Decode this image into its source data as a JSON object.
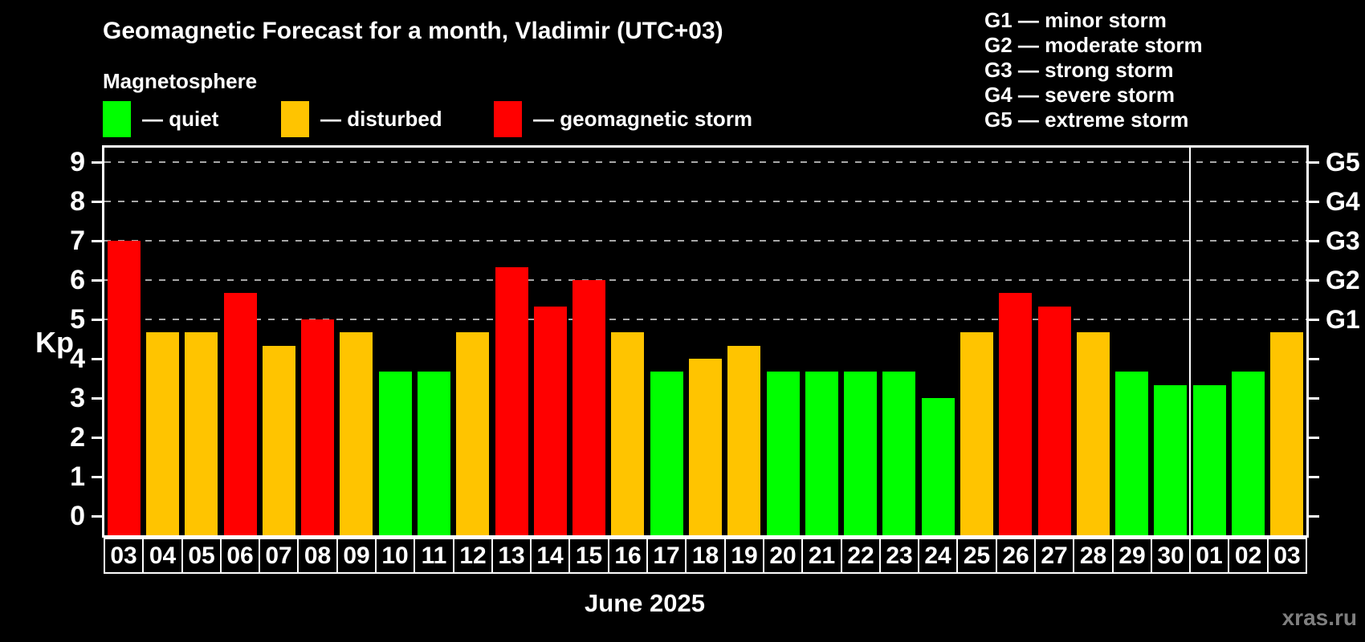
{
  "page": {
    "title": "Geomagnetic Forecast for a month, Vladimir (UTC+03)",
    "subtitle": "Magnetosphere",
    "xlabel": "June 2025",
    "ylabel": "Kp",
    "watermark": "xras.ru"
  },
  "legend": {
    "items": [
      {
        "key": "quiet",
        "label": "— quiet"
      },
      {
        "key": "disturbed",
        "label": "— disturbed"
      },
      {
        "key": "storm",
        "label": "— geomagnetic storm"
      }
    ]
  },
  "g_scale_legend": {
    "lines": [
      "G1 — minor storm",
      "G2 — moderate storm",
      "G3 — strong storm",
      "G4 — severe storm",
      "G5 — extreme storm"
    ]
  },
  "chart_data": {
    "type": "bar",
    "title": "Geomagnetic Forecast for a month, Vladimir (UTC+03)",
    "subtitle": "Magnetosphere",
    "xlabel": "June 2025",
    "ylabel": "Kp",
    "ylim": [
      0,
      9
    ],
    "grid": "dashed horizontal at Kp 5-9 only",
    "legend_position": "top-left",
    "categories": [
      "03",
      "04",
      "05",
      "06",
      "07",
      "08",
      "09",
      "10",
      "11",
      "12",
      "13",
      "14",
      "15",
      "16",
      "17",
      "18",
      "19",
      "20",
      "21",
      "22",
      "23",
      "24",
      "25",
      "26",
      "27",
      "28",
      "29",
      "30",
      "01",
      "02",
      "03"
    ],
    "values": [
      7.0,
      4.67,
      4.67,
      5.67,
      4.33,
      5.0,
      4.67,
      3.67,
      3.67,
      4.67,
      6.33,
      5.33,
      6.0,
      4.67,
      3.67,
      4.0,
      4.33,
      3.67,
      3.67,
      3.67,
      3.67,
      3.0,
      4.67,
      5.67,
      5.33,
      4.67,
      3.67,
      3.33,
      3.33,
      3.67,
      4.67
    ],
    "statuses": [
      "storm",
      "disturbed",
      "disturbed",
      "storm",
      "disturbed",
      "storm",
      "disturbed",
      "quiet",
      "quiet",
      "disturbed",
      "storm",
      "storm",
      "storm",
      "disturbed",
      "quiet",
      "disturbed",
      "disturbed",
      "quiet",
      "quiet",
      "quiet",
      "quiet",
      "quiet",
      "disturbed",
      "storm",
      "storm",
      "disturbed",
      "quiet",
      "quiet",
      "quiet",
      "quiet",
      "disturbed"
    ],
    "colors": {
      "quiet": "#00ff00",
      "disturbed": "#ffc400",
      "storm": "#ff0000"
    },
    "y_ticks": [
      "0",
      "1",
      "2",
      "3",
      "4",
      "5",
      "6",
      "7",
      "8",
      "9"
    ],
    "gridlines_at": [
      5,
      6,
      7,
      8,
      9
    ],
    "right_axis_labels": [
      {
        "label": "G1",
        "kp": 5
      },
      {
        "label": "G2",
        "kp": 6
      },
      {
        "label": "G3",
        "kp": 7
      },
      {
        "label": "G4",
        "kp": 8
      },
      {
        "label": "G5",
        "kp": 9
      }
    ],
    "month_divider_after_index": 27
  }
}
